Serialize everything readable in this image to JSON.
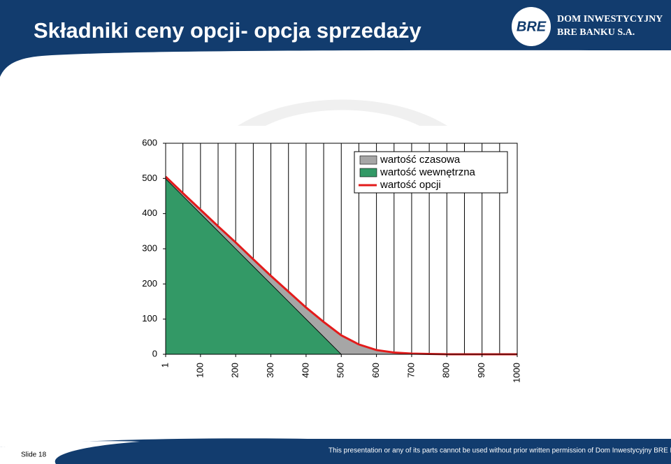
{
  "header": {
    "title": "Składniki ceny opcji- opcja sprzedaży",
    "logo_mark": "BRE",
    "logo_line1": "DOM INWESTYCYJNY",
    "logo_line2": "BRE BANKU S.A."
  },
  "footer": {
    "slide": "Slide 18",
    "notice": "This presentation or any of its parts cannot be used without prior written permission of Dom Inwestycyjny BRE Banku S..A."
  },
  "chart_data": {
    "type": "area",
    "x": [
      1,
      50,
      100,
      150,
      200,
      250,
      300,
      350,
      400,
      450,
      500,
      550,
      600,
      650,
      700,
      750,
      800,
      850,
      900,
      950,
      1000
    ],
    "xlim": [
      1,
      1000
    ],
    "xticks": [
      1,
      100,
      200,
      300,
      400,
      500,
      600,
      700,
      800,
      900,
      1000
    ],
    "ylim": [
      0,
      600
    ],
    "yticks": [
      0,
      100,
      200,
      300,
      400,
      500,
      600
    ],
    "series": [
      {
        "name": "wartość czasowa",
        "kind": "area",
        "color": "#a6a6a6",
        "values": [
          6,
          8,
          11,
          14,
          18,
          20,
          23,
          28,
          33,
          42,
          54,
          28,
          12,
          5,
          2,
          1,
          0,
          0,
          0,
          0,
          0
        ]
      },
      {
        "name": "wartość wewnętrzna",
        "kind": "area",
        "color": "#339966",
        "values": [
          499,
          450,
          400,
          350,
          300,
          250,
          200,
          150,
          100,
          50,
          0,
          0,
          0,
          0,
          0,
          0,
          0,
          0,
          0,
          0,
          0
        ]
      },
      {
        "name": "wartość opcji",
        "kind": "line",
        "color": "#e31b1b",
        "values": [
          505,
          458,
          411,
          364,
          318,
          270,
          223,
          178,
          133,
          92,
          54,
          28,
          12,
          5,
          2,
          1,
          0,
          0,
          0,
          0,
          0
        ]
      }
    ]
  }
}
